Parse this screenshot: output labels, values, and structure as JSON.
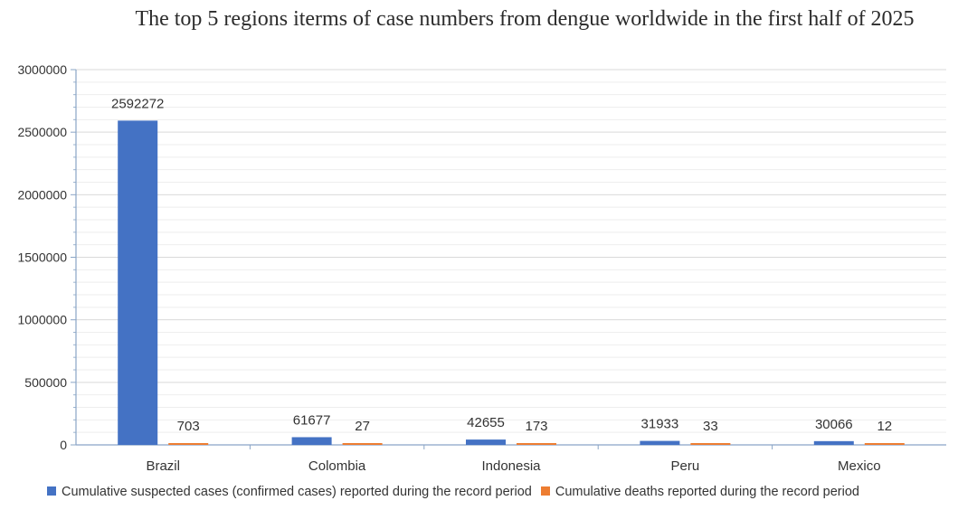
{
  "chart_data": {
    "type": "bar",
    "title": "The top 5 regions iterms of case numbers from dengue worldwide in the first half of 2025",
    "xlabel": "",
    "ylabel": "",
    "categories": [
      "Brazil",
      "Colombia",
      "Indonesia",
      "Peru",
      "Mexico"
    ],
    "series": [
      {
        "name": "Cumulative suspected cases (confirmed cases) reported during the record period",
        "color": "#4472C4",
        "values": [
          2592272,
          61677,
          42655,
          31933,
          30066
        ]
      },
      {
        "name": "Cumulative deaths reported during the record period",
        "color": "#ED7D31",
        "values": [
          703,
          27,
          173,
          33,
          12
        ]
      }
    ],
    "ylim": [
      0,
      3000000
    ],
    "yticks": [
      0,
      500000,
      1000000,
      1500000,
      2000000,
      2500000,
      3000000
    ],
    "grid": true,
    "legend": "bottom"
  }
}
